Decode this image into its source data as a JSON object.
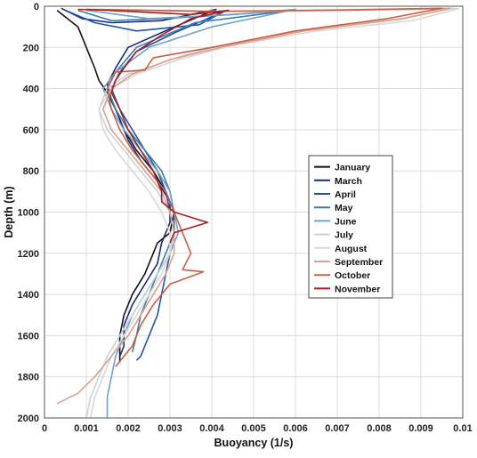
{
  "chart_data": {
    "type": "line",
    "xlabel": "Buoyancy (1/s)",
    "ylabel": "Depth (m)",
    "xlim": [
      0,
      0.01
    ],
    "ylim": [
      0,
      2000
    ],
    "y_reversed": true,
    "grid": true,
    "legend_placement": "center-right",
    "x_ticks": [
      "0",
      "0.001",
      "0.002",
      "0.003",
      "0.004",
      "0.005",
      "0.006",
      "0.007",
      "0.008",
      "0.009",
      "0.01"
    ],
    "y_ticks": [
      "0",
      "200",
      "400",
      "600",
      "800",
      "1000",
      "1200",
      "1400",
      "1600",
      "1800",
      "2000"
    ],
    "series": [
      {
        "name": "January",
        "color": "#111122",
        "points": [
          [
            0.0003,
            20
          ],
          [
            0.0008,
            100
          ],
          [
            0.001,
            200
          ],
          [
            0.0012,
            300
          ],
          [
            0.0013,
            360
          ],
          [
            0.0015,
            420
          ],
          [
            0.0017,
            500
          ],
          [
            0.0019,
            600
          ],
          [
            0.0022,
            700
          ],
          [
            0.0026,
            800
          ],
          [
            0.0029,
            900
          ],
          [
            0.0031,
            1000
          ],
          [
            0.003,
            1100
          ],
          [
            0.0027,
            1150
          ],
          [
            0.0026,
            1200
          ],
          [
            0.0024,
            1300
          ],
          [
            0.0021,
            1400
          ],
          [
            0.0019,
            1500
          ],
          [
            0.0018,
            1600
          ],
          [
            0.0018,
            1700
          ],
          [
            0.0018,
            1730
          ]
        ]
      },
      {
        "name": "March",
        "color": "#1a2a7a",
        "points": [
          [
            0.0004,
            10
          ],
          [
            0.0009,
            60
          ],
          [
            0.0016,
            80
          ],
          [
            0.0028,
            70
          ],
          [
            0.0041,
            15
          ],
          [
            0.003,
            110
          ],
          [
            0.002,
            200
          ],
          [
            0.0017,
            300
          ],
          [
            0.0015,
            380
          ],
          [
            0.0016,
            450
          ],
          [
            0.0018,
            550
          ],
          [
            0.002,
            650
          ],
          [
            0.0023,
            750
          ],
          [
            0.0027,
            850
          ],
          [
            0.003,
            950
          ],
          [
            0.003,
            1050
          ],
          [
            0.0028,
            1150
          ],
          [
            0.0027,
            1250
          ],
          [
            0.0024,
            1350
          ],
          [
            0.0021,
            1450
          ],
          [
            0.0019,
            1550
          ],
          [
            0.0019,
            1650
          ],
          [
            0.0018,
            1700
          ]
        ]
      },
      {
        "name": "April",
        "color": "#1f55a8",
        "points": [
          [
            0.0005,
            20
          ],
          [
            0.0012,
            80
          ],
          [
            0.0022,
            120
          ],
          [
            0.0037,
            90
          ],
          [
            0.0043,
            25
          ],
          [
            0.0031,
            130
          ],
          [
            0.0022,
            220
          ],
          [
            0.0018,
            320
          ],
          [
            0.0016,
            400
          ],
          [
            0.0018,
            500
          ],
          [
            0.0021,
            600
          ],
          [
            0.0024,
            700
          ],
          [
            0.0027,
            800
          ],
          [
            0.0029,
            900
          ],
          [
            0.003,
            1000
          ],
          [
            0.0031,
            1100
          ],
          [
            0.003,
            1200
          ],
          [
            0.0029,
            1300
          ],
          [
            0.0028,
            1400
          ],
          [
            0.0027,
            1500
          ],
          [
            0.0025,
            1600
          ],
          [
            0.0023,
            1700
          ],
          [
            0.0022,
            1720
          ]
        ]
      },
      {
        "name": "May",
        "color": "#3a7fa8",
        "points": [
          [
            0.0008,
            20
          ],
          [
            0.0016,
            70
          ],
          [
            0.0028,
            60
          ],
          [
            0.0045,
            40
          ],
          [
            0.0059,
            20
          ],
          [
            0.0036,
            80
          ],
          [
            0.0022,
            200
          ],
          [
            0.0017,
            320
          ],
          [
            0.0015,
            400
          ],
          [
            0.0017,
            500
          ],
          [
            0.002,
            600
          ],
          [
            0.0024,
            700
          ],
          [
            0.0028,
            800
          ],
          [
            0.003,
            900
          ],
          [
            0.0031,
            1000
          ],
          [
            0.0031,
            1100
          ],
          [
            0.0029,
            1200
          ],
          [
            0.0027,
            1300
          ],
          [
            0.0025,
            1400
          ],
          [
            0.0023,
            1500
          ],
          [
            0.0022,
            1600
          ],
          [
            0.0021,
            1680
          ]
        ]
      },
      {
        "name": "June",
        "color": "#6fa2c6",
        "points": [
          [
            0.001,
            20
          ],
          [
            0.0025,
            60
          ],
          [
            0.0045,
            40
          ],
          [
            0.006,
            15
          ],
          [
            0.004,
            100
          ],
          [
            0.0025,
            200
          ],
          [
            0.0017,
            320
          ],
          [
            0.0014,
            400
          ],
          [
            0.0016,
            500
          ],
          [
            0.0019,
            600
          ],
          [
            0.0023,
            700
          ],
          [
            0.0027,
            800
          ],
          [
            0.003,
            900
          ],
          [
            0.0031,
            1000
          ],
          [
            0.0032,
            1100
          ],
          [
            0.003,
            1200
          ],
          [
            0.0027,
            1300
          ],
          [
            0.0024,
            1400
          ],
          [
            0.0021,
            1500
          ],
          [
            0.0019,
            1600
          ],
          [
            0.0017,
            1700
          ],
          [
            0.0016,
            1800
          ],
          [
            0.0015,
            1900
          ],
          [
            0.0015,
            2000
          ]
        ]
      },
      {
        "name": "July",
        "color": "#c8d2dc",
        "points": [
          [
            0.0012,
            15
          ],
          [
            0.004,
            25
          ],
          [
            0.007,
            20
          ],
          [
            0.0098,
            10
          ],
          [
            0.0085,
            60
          ],
          [
            0.006,
            120
          ],
          [
            0.004,
            200
          ],
          [
            0.003,
            260
          ],
          [
            0.002,
            330
          ],
          [
            0.0015,
            400
          ],
          [
            0.0013,
            500
          ],
          [
            0.0015,
            600
          ],
          [
            0.0019,
            700
          ],
          [
            0.0023,
            800
          ],
          [
            0.0027,
            900
          ],
          [
            0.003,
            1000
          ],
          [
            0.0031,
            1100
          ],
          [
            0.003,
            1200
          ],
          [
            0.0027,
            1300
          ],
          [
            0.0024,
            1400
          ],
          [
            0.0021,
            1500
          ],
          [
            0.0018,
            1600
          ],
          [
            0.0015,
            1700
          ],
          [
            0.0013,
            1800
          ],
          [
            0.0011,
            1900
          ],
          [
            0.001,
            2000
          ]
        ]
      },
      {
        "name": "August",
        "color": "#d8d8d8",
        "points": [
          [
            0.0015,
            15
          ],
          [
            0.0045,
            25
          ],
          [
            0.0075,
            20
          ],
          [
            0.0099,
            12
          ],
          [
            0.0088,
            70
          ],
          [
            0.0065,
            120
          ],
          [
            0.0045,
            190
          ],
          [
            0.0032,
            260
          ],
          [
            0.0022,
            330
          ],
          [
            0.0016,
            400
          ],
          [
            0.0013,
            500
          ],
          [
            0.0014,
            600
          ],
          [
            0.0017,
            700
          ],
          [
            0.0021,
            800
          ],
          [
            0.0025,
            900
          ],
          [
            0.0028,
            1000
          ],
          [
            0.003,
            1100
          ],
          [
            0.003,
            1200
          ],
          [
            0.0028,
            1300
          ],
          [
            0.0025,
            1400
          ],
          [
            0.0022,
            1500
          ],
          [
            0.0019,
            1600
          ],
          [
            0.0016,
            1700
          ],
          [
            0.0014,
            1800
          ],
          [
            0.0012,
            1900
          ],
          [
            0.0011,
            2000
          ]
        ]
      },
      {
        "name": "September",
        "color": "#e0a088",
        "points": [
          [
            0.001,
            15
          ],
          [
            0.004,
            25
          ],
          [
            0.0072,
            20
          ],
          [
            0.0097,
            10
          ],
          [
            0.0086,
            60
          ],
          [
            0.0062,
            120
          ],
          [
            0.0042,
            200
          ],
          [
            0.003,
            260
          ],
          [
            0.0021,
            330
          ],
          [
            0.0016,
            400
          ],
          [
            0.0014,
            500
          ],
          [
            0.0016,
            600
          ],
          [
            0.002,
            700
          ],
          [
            0.0024,
            800
          ],
          [
            0.0028,
            900
          ],
          [
            0.003,
            1000
          ],
          [
            0.0031,
            1100
          ],
          [
            0.0031,
            1200
          ],
          [
            0.0029,
            1300
          ],
          [
            0.0026,
            1400
          ],
          [
            0.0023,
            1500
          ],
          [
            0.002,
            1600
          ],
          [
            0.0016,
            1700
          ],
          [
            0.0012,
            1800
          ],
          [
            0.0008,
            1880
          ],
          [
            0.0003,
            1930
          ]
        ]
      },
      {
        "name": "October",
        "color": "#c86048",
        "points": [
          [
            0.001,
            15
          ],
          [
            0.004,
            25
          ],
          [
            0.007,
            18
          ],
          [
            0.0095,
            10
          ],
          [
            0.0082,
            60
          ],
          [
            0.006,
            120
          ],
          [
            0.004,
            200
          ],
          [
            0.0026,
            250
          ],
          [
            0.0024,
            310
          ],
          [
            0.0017,
            320
          ],
          [
            0.0015,
            400
          ],
          [
            0.0016,
            500
          ],
          [
            0.0018,
            600
          ],
          [
            0.0021,
            700
          ],
          [
            0.0025,
            800
          ],
          [
            0.0029,
            900
          ],
          [
            0.0031,
            1000
          ],
          [
            0.0033,
            1100
          ],
          [
            0.0035,
            1200
          ],
          [
            0.0033,
            1280
          ],
          [
            0.0038,
            1290
          ],
          [
            0.003,
            1350
          ],
          [
            0.0026,
            1450
          ],
          [
            0.0023,
            1550
          ],
          [
            0.0021,
            1650
          ],
          [
            0.0017,
            1750
          ]
        ]
      },
      {
        "name": "November",
        "color": "#a8201c",
        "points": [
          [
            0.0008,
            15
          ],
          [
            0.0015,
            20
          ],
          [
            0.0025,
            30
          ],
          [
            0.0035,
            40
          ],
          [
            0.0044,
            20
          ],
          [
            0.0035,
            60
          ],
          [
            0.0028,
            140
          ],
          [
            0.0022,
            220
          ],
          [
            0.0019,
            300
          ],
          [
            0.0017,
            360
          ],
          [
            0.0016,
            420
          ],
          [
            0.0018,
            500
          ],
          [
            0.002,
            600
          ],
          [
            0.0023,
            700
          ],
          [
            0.0026,
            800
          ],
          [
            0.0028,
            900
          ],
          [
            0.0028,
            950
          ],
          [
            0.0031,
            1000
          ],
          [
            0.0039,
            1050
          ],
          [
            0.0031,
            1100
          ],
          [
            0.003,
            1150
          ]
        ]
      }
    ]
  }
}
